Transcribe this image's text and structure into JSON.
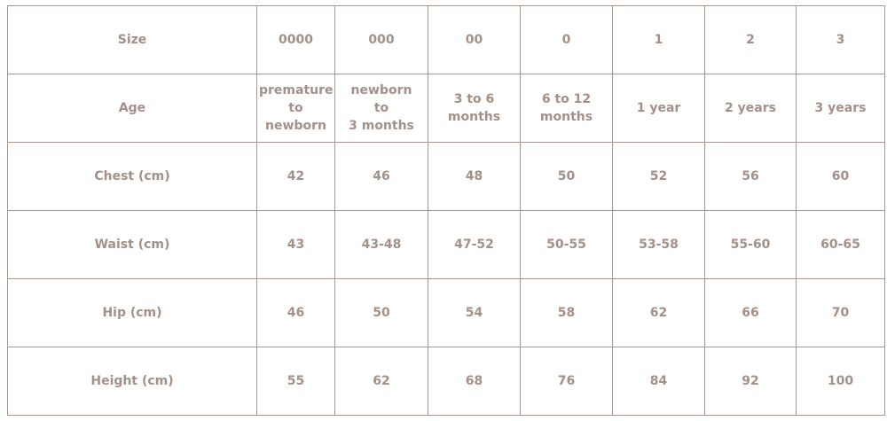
{
  "table": {
    "rows": [
      {
        "label": "Size",
        "cells": [
          "0000",
          "000",
          "00",
          "0",
          "1",
          "2",
          "3"
        ]
      },
      {
        "label": "Age",
        "cells": [
          "premature\nto\nnewborn",
          "newborn\nto\n3 months",
          "3 to 6\nmonths",
          "6 to 12\nmonths",
          "1 year",
          "2 years",
          "3 years"
        ]
      },
      {
        "label": "Chest (cm)",
        "cells": [
          "42",
          "46",
          "48",
          "50",
          "52",
          "56",
          "60"
        ]
      },
      {
        "label": "Waist (cm)",
        "cells": [
          "43",
          "43-48",
          "47-52",
          "50-55",
          "53-58",
          "55-60",
          "60-65"
        ]
      },
      {
        "label": "Hip (cm)",
        "cells": [
          "46",
          "50",
          "54",
          "58",
          "62",
          "66",
          "70"
        ]
      },
      {
        "label": "Height (cm)",
        "cells": [
          "55",
          "62",
          "68",
          "76",
          "84",
          "92",
          "100"
        ]
      }
    ],
    "colors": {
      "text": "#a39189",
      "border": "#a8968f"
    }
  }
}
